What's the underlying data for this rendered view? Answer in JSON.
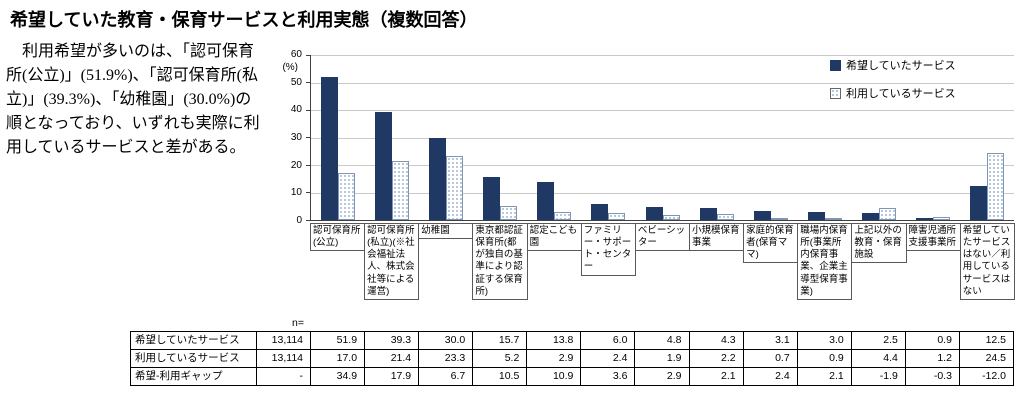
{
  "title": "希望していた教育・保育サービスと利用実態（複数回答）",
  "description": "　利用希望が多いのは、「認可保育所(公立)」(51.9%)、「認可保育所(私立)」(39.3%)、「幼稚園」(30.0%)の順となっており、いずれも実際に利用しているサービスと差がある。",
  "chart_data": {
    "type": "bar",
    "y_axis_unit": "(%)",
    "ylim": [
      0,
      60
    ],
    "yticks": [
      0,
      10,
      20,
      30,
      40,
      50,
      60
    ],
    "grid": true,
    "legend_position": "top-right",
    "legend": [
      "希望していたサービス",
      "利用しているサービス"
    ],
    "categories": [
      "認可保育所(公立)",
      "認可保育所(私立)(※社会福祉法人、株式会社等による運営)",
      "幼稚園",
      "東京都認証保育所(都が独自の基準により認証する保育所)",
      "認定こども園",
      "ファミリー・サポート・センター",
      "ベビーシッター",
      "小規模保育事業",
      "家庭的保育者(保育ママ)",
      "職場内保育所(事業所内保育事業、企業主導型保育事業)",
      "上記以外の教育・保育施設",
      "障害児通所支援事業所",
      "希望していたサービスはない／利用しているサービスはない"
    ],
    "series": [
      {
        "name": "希望していたサービス",
        "values": [
          51.9,
          39.3,
          30.0,
          15.7,
          13.8,
          6.0,
          4.8,
          4.3,
          3.1,
          3.0,
          2.5,
          0.9,
          12.5
        ]
      },
      {
        "name": "利用しているサービス",
        "values": [
          17.0,
          21.4,
          23.3,
          5.2,
          2.9,
          2.4,
          1.9,
          2.2,
          0.7,
          0.9,
          4.4,
          1.2,
          24.5
        ]
      }
    ],
    "colors": {
      "desired_bar": "#1F3864",
      "using_bar_dots": "#9FB6CF"
    }
  },
  "table": {
    "n_label": "n=",
    "rows": [
      {
        "label": "希望していたサービス",
        "n": "13,114",
        "values": [
          "51.9",
          "39.3",
          "30.0",
          "15.7",
          "13.8",
          "6.0",
          "4.8",
          "4.3",
          "3.1",
          "3.0",
          "2.5",
          "0.9",
          "12.5"
        ]
      },
      {
        "label": "利用しているサービス",
        "n": "13,114",
        "values": [
          "17.0",
          "21.4",
          "23.3",
          "5.2",
          "2.9",
          "2.4",
          "1.9",
          "2.2",
          "0.7",
          "0.9",
          "4.4",
          "1.2",
          "24.5"
        ]
      },
      {
        "label": "希望-利用ギャップ",
        "n": "-",
        "values": [
          "34.9",
          "17.9",
          "6.7",
          "10.5",
          "10.9",
          "3.6",
          "2.9",
          "2.1",
          "2.4",
          "2.1",
          "-1.9",
          "-0.3",
          "-12.0"
        ]
      }
    ]
  }
}
